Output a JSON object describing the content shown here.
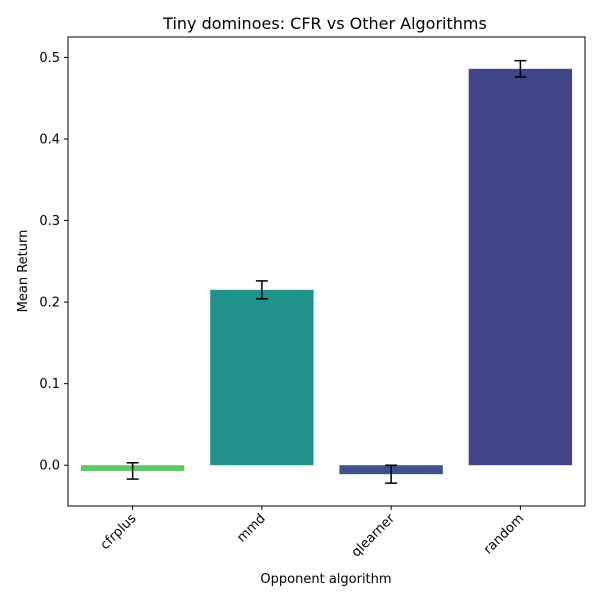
{
  "chart_data": {
    "type": "bar",
    "title": "Tiny dominoes: CFR vs Other Algorithms",
    "xlabel": "Opponent algorithm",
    "ylabel": "Mean Return",
    "categories": [
      "cfrplus",
      "mmd",
      "qlearner",
      "random"
    ],
    "values": [
      -0.007,
      0.215,
      -0.011,
      0.486
    ],
    "errors": [
      0.01,
      0.011,
      0.011,
      0.01
    ],
    "colors": [
      "#5ec962",
      "#21918c",
      "#3b528b",
      "#404688"
    ],
    "ylim": [
      -0.05,
      0.525
    ],
    "yticks": [
      "0.0",
      "0.1",
      "0.2",
      "0.3",
      "0.4",
      "0.5"
    ],
    "grid": false,
    "legend": false
  }
}
